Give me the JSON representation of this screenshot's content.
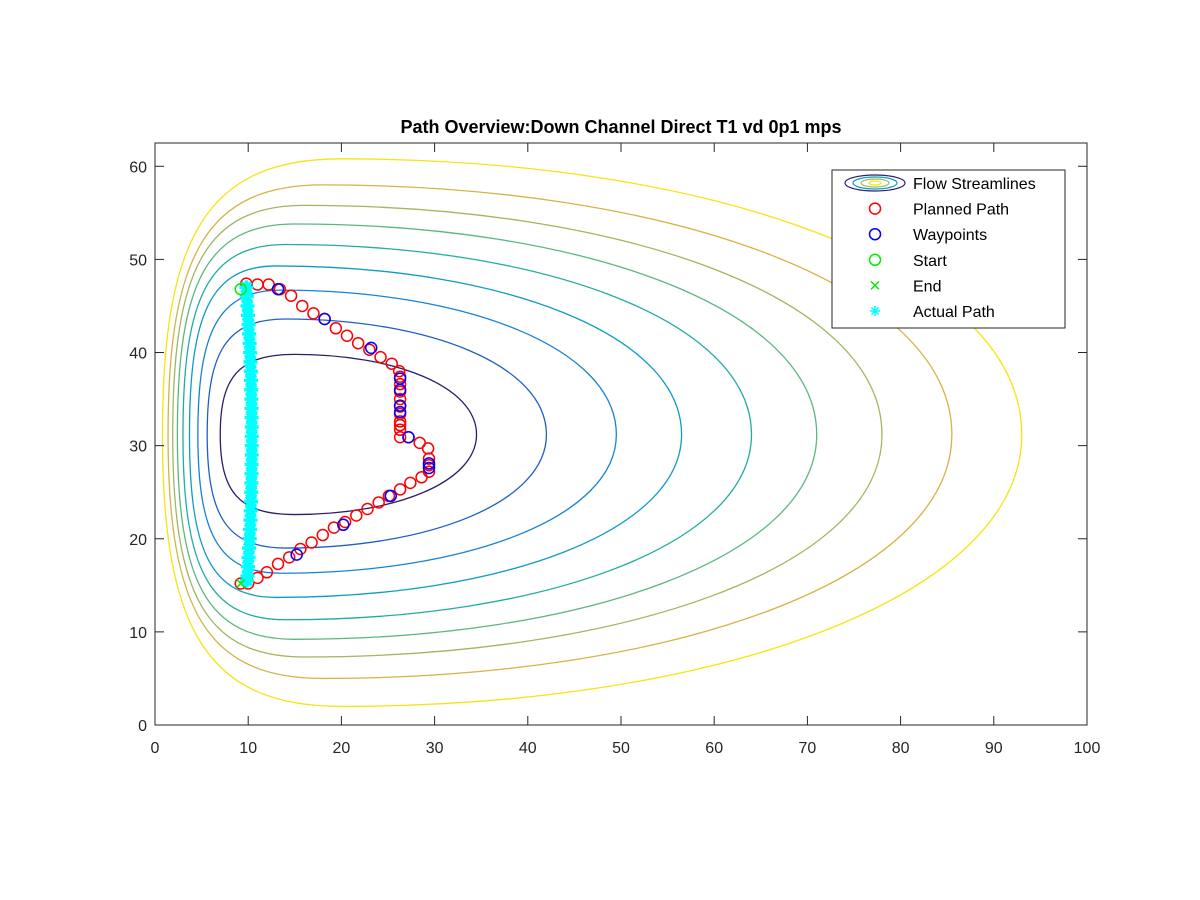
{
  "chart_data": {
    "type": "scatter",
    "title": "Path Overview:Down Channel Direct T1 vd 0p1 mps",
    "xlabel": "",
    "ylabel": "",
    "xlim": [
      0,
      100
    ],
    "ylim": [
      0,
      62.5
    ],
    "x_ticks": [
      0,
      10,
      20,
      30,
      40,
      50,
      60,
      70,
      80,
      90,
      100
    ],
    "y_ticks": [
      0,
      10,
      20,
      30,
      40,
      50,
      60
    ],
    "grid": false,
    "legend_position": "top-right",
    "series": [
      {
        "name": "Flow Streamlines",
        "kind": "contour",
        "levels": [
          {
            "x_left": 7.0,
            "x_right": 15.0,
            "x_max": 34.5,
            "y_bottom": 22.6,
            "y_top": 39.8,
            "color": "#2c1e6e"
          },
          {
            "x_left": 5.6,
            "x_right": 14.0,
            "x_max": 42.0,
            "y_bottom": 19.0,
            "y_top": 43.6,
            "color": "#1f5fc8"
          },
          {
            "x_left": 4.6,
            "x_right": 13.5,
            "x_max": 49.5,
            "y_bottom": 16.3,
            "y_top": 46.7,
            "color": "#1583d4"
          },
          {
            "x_left": 3.7,
            "x_right": 13.0,
            "x_max": 56.5,
            "y_bottom": 13.7,
            "y_top": 49.3,
            "color": "#0f9cc4"
          },
          {
            "x_left": 3.0,
            "x_right": 14.0,
            "x_max": 64.0,
            "y_bottom": 11.3,
            "y_top": 51.6,
            "color": "#20ad9e"
          },
          {
            "x_left": 2.4,
            "x_right": 15.0,
            "x_max": 71.0,
            "y_bottom": 9.2,
            "y_top": 53.8,
            "color": "#5bb781"
          },
          {
            "x_left": 1.9,
            "x_right": 16.0,
            "x_max": 78.0,
            "y_bottom": 7.3,
            "y_top": 55.8,
            "color": "#9db85f"
          },
          {
            "x_left": 1.4,
            "x_right": 18.0,
            "x_max": 85.5,
            "y_bottom": 5.0,
            "y_top": 58.0,
            "color": "#d3b446"
          },
          {
            "x_left": 0.8,
            "x_right": 20.0,
            "x_max": 93.0,
            "y_bottom": 2.0,
            "y_top": 60.8,
            "color": "#f5e50f"
          }
        ]
      },
      {
        "name": "Planned Path",
        "color": "#ff0000",
        "marker": "o",
        "x": [
          9.8,
          11.0,
          12.2,
          13.4,
          14.6,
          15.8,
          17.0,
          18.2,
          19.4,
          20.6,
          21.8,
          23.0,
          24.2,
          25.4,
          26.2,
          26.3,
          26.3,
          26.3,
          26.3,
          26.3,
          26.3,
          26.3,
          26.3,
          26.3,
          26.3,
          27.2,
          28.4,
          29.3,
          29.4,
          29.4,
          29.4,
          28.6,
          27.4,
          26.3,
          25.1,
          24.0,
          22.8,
          21.6,
          20.4,
          19.2,
          18.0,
          16.8,
          15.6,
          14.4,
          13.2,
          12.0,
          11.0,
          10.0,
          9.2
        ],
        "y": [
          47.4,
          47.3,
          47.3,
          46.8,
          46.1,
          45.0,
          44.2,
          43.6,
          42.6,
          41.8,
          41.0,
          40.3,
          39.5,
          38.8,
          38.0,
          37.4,
          36.6,
          35.8,
          35.0,
          34.2,
          33.4,
          32.6,
          32.2,
          31.7,
          30.9,
          30.9,
          30.3,
          29.7,
          28.6,
          27.9,
          27.2,
          26.6,
          26.0,
          25.3,
          24.6,
          23.9,
          23.2,
          22.5,
          21.8,
          21.2,
          20.4,
          19.6,
          18.9,
          18.0,
          17.3,
          16.4,
          15.8,
          15.2,
          15.2
        ]
      },
      {
        "name": "Waypoints",
        "color": "#0000ff",
        "marker": "o",
        "x": [
          13.2,
          18.2,
          23.2,
          26.3,
          26.3,
          26.3,
          26.3,
          27.2,
          29.4,
          29.4,
          25.3,
          20.2,
          15.2
        ],
        "y": [
          46.8,
          43.6,
          40.5,
          37.2,
          36.0,
          34.3,
          33.6,
          30.9,
          28.1,
          27.6,
          24.6,
          21.5,
          18.3
        ]
      },
      {
        "name": "Start",
        "color": "#00ee00",
        "marker": "o",
        "x": [
          9.2
        ],
        "y": [
          46.8
        ]
      },
      {
        "name": "End",
        "color": "#00ee00",
        "marker": "x",
        "x": [
          9.2
        ],
        "y": [
          15.2
        ]
      },
      {
        "name": "Actual Path",
        "color": "#00ffff",
        "marker": "*",
        "x": [
          9.8,
          9.86,
          9.92,
          9.98,
          10.04,
          10.1,
          10.16,
          10.2,
          10.24,
          10.28,
          10.3,
          10.32,
          10.34,
          10.36,
          10.37,
          10.38,
          10.38,
          10.38,
          10.38,
          10.37,
          10.36,
          10.34,
          10.32,
          10.3,
          10.27,
          10.24,
          10.2,
          10.16,
          10.1,
          10.04,
          9.98,
          9.92,
          9.86
        ],
        "y": [
          47.0,
          46.0,
          45.0,
          44.0,
          43.0,
          42.0,
          41.0,
          40.0,
          39.0,
          38.0,
          37.0,
          36.0,
          35.0,
          34.0,
          33.0,
          32.0,
          31.0,
          30.0,
          29.0,
          28.0,
          27.0,
          26.0,
          25.0,
          24.0,
          23.0,
          22.0,
          21.0,
          20.0,
          19.0,
          18.0,
          17.0,
          16.0,
          15.5
        ]
      }
    ]
  }
}
